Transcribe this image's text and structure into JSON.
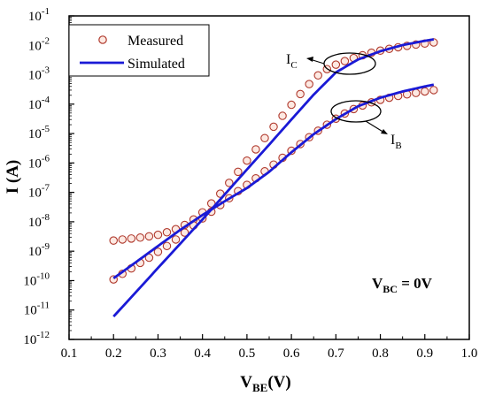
{
  "chart_data": {
    "type": "scatter",
    "xlabel": "V",
    "xlabel_sub": "BE",
    "xlabel_suffix": "(V)",
    "ylabel": "I (A)",
    "x_ticks": [
      "0.1",
      "0.2",
      "0.3",
      "0.4",
      "0.5",
      "0.6",
      "0.7",
      "0.8",
      "0.9",
      "1.0"
    ],
    "y_ticks": [
      {
        "base": "10",
        "exp": "-12"
      },
      {
        "base": "10",
        "exp": "-11"
      },
      {
        "base": "10",
        "exp": "-10"
      },
      {
        "base": "10",
        "exp": "-9"
      },
      {
        "base": "10",
        "exp": "-8"
      },
      {
        "base": "10",
        "exp": "-7"
      },
      {
        "base": "10",
        "exp": "-6"
      },
      {
        "base": "10",
        "exp": "-5"
      },
      {
        "base": "10",
        "exp": "-4"
      },
      {
        "base": "10",
        "exp": "-3"
      },
      {
        "base": "10",
        "exp": "-2"
      },
      {
        "base": "10",
        "exp": "-1"
      }
    ],
    "xlim": [
      0.1,
      1.0
    ],
    "ylim": [
      1e-12,
      0.1
    ],
    "yscale": "log",
    "grid": false,
    "legend_position": "top-left",
    "series": [
      {
        "name": "Measured",
        "style": "markers",
        "marker": "open-circle",
        "color": "#b03a2e",
        "fill": "#fde9e2",
        "curves": [
          {
            "label": "IC",
            "x": [
              0.2,
              0.22,
              0.24,
              0.26,
              0.28,
              0.3,
              0.32,
              0.34,
              0.36,
              0.38,
              0.4,
              0.42,
              0.44,
              0.46,
              0.48,
              0.5,
              0.52,
              0.54,
              0.56,
              0.58,
              0.6,
              0.62,
              0.64,
              0.66,
              0.68,
              0.7,
              0.72,
              0.74,
              0.76,
              0.78,
              0.8,
              0.82,
              0.84,
              0.86,
              0.88,
              0.9,
              0.92
            ],
            "y": [
              2.3e-09,
              2.5e-09,
              2.7e-09,
              2.9e-09,
              3.2e-09,
              3.6e-09,
              4.4e-09,
              5.6e-09,
              7.8e-09,
              1.2e-08,
              2.1e-08,
              4.2e-08,
              9e-08,
              2.1e-07,
              5e-07,
              1.2e-06,
              2.9e-06,
              7e-06,
              1.7e-05,
              4e-05,
              9.5e-05,
              0.00022,
              0.00048,
              0.00095,
              0.00155,
              0.0022,
              0.0029,
              0.0037,
              0.0046,
              0.0056,
              0.0066,
              0.0076,
              0.0086,
              0.0096,
              0.0106,
              0.0115,
              0.0125
            ]
          },
          {
            "label": "IB",
            "x": [
              0.2,
              0.22,
              0.24,
              0.26,
              0.28,
              0.3,
              0.32,
              0.34,
              0.36,
              0.38,
              0.4,
              0.42,
              0.44,
              0.46,
              0.48,
              0.5,
              0.52,
              0.54,
              0.56,
              0.58,
              0.6,
              0.62,
              0.64,
              0.66,
              0.68,
              0.7,
              0.72,
              0.74,
              0.76,
              0.78,
              0.8,
              0.82,
              0.84,
              0.86,
              0.88,
              0.9,
              0.92
            ],
            "y": [
              1.1e-10,
              1.7e-10,
              2.6e-10,
              4e-10,
              6e-10,
              9.5e-10,
              1.5e-09,
              2.5e-09,
              4.3e-09,
              7.5e-09,
              1.3e-08,
              2.2e-08,
              3.7e-08,
              6.3e-08,
              1.1e-07,
              1.8e-07,
              3e-07,
              5.2e-07,
              8.8e-07,
              1.5e-06,
              2.6e-06,
              4.4e-06,
              7.5e-06,
              1.25e-05,
              2e-05,
              3.2e-05,
              4.8e-05,
              6.8e-05,
              9e-05,
              0.000115,
              0.00014,
              0.000165,
              0.00019,
              0.000215,
              0.00024,
              0.00027,
              0.0003
            ]
          }
        ]
      },
      {
        "name": "Simulated",
        "style": "line",
        "color": "#1a1ad6",
        "curves": [
          {
            "label": "IC",
            "x": [
              0.2,
              0.25,
              0.3,
              0.35,
              0.4,
              0.45,
              0.5,
              0.55,
              0.6,
              0.65,
              0.7,
              0.75,
              0.8,
              0.85,
              0.9,
              0.92
            ],
            "y": [
              6e-12,
              4e-11,
              2.7e-10,
              1.8e-09,
              1.2e-08,
              8.5e-08,
              6e-07,
              4.2e-06,
              3e-05,
              0.00021,
              0.0012,
              0.0033,
              0.0063,
              0.0102,
              0.0142,
              0.016
            ]
          },
          {
            "label": "IB",
            "x": [
              0.2,
              0.25,
              0.3,
              0.35,
              0.4,
              0.45,
              0.5,
              0.55,
              0.6,
              0.65,
              0.7,
              0.75,
              0.8,
              0.85,
              0.9,
              0.92
            ],
            "y": [
              1.2e-10,
              4.2e-10,
              1.5e-09,
              5.3e-09,
              1.7e-08,
              5e-08,
              1.4e-07,
              5e-07,
              2.3e-06,
              9.5e-06,
              3.1e-05,
              8.5e-05,
              0.000165,
              0.00027,
              0.0004,
              0.00046
            ]
          }
        ]
      }
    ],
    "annotations": {
      "ic_label": "I",
      "ic_sub": "C",
      "ib_label": "I",
      "ib_sub": "B",
      "condition_main": "V",
      "condition_sub": "BC",
      "condition_suffix": " = 0V"
    }
  }
}
